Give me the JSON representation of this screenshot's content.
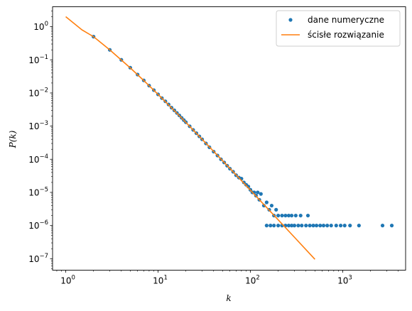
{
  "chart_data": {
    "type": "scatter",
    "x_scale": "log",
    "y_scale": "log",
    "xlim": [
      0.72,
      4800
    ],
    "ylim": [
      4.5e-08,
      4.0
    ],
    "xlabel": "k",
    "ylabel": "P(k)",
    "grid": false,
    "legend_position": "top-right",
    "x_ticks": [
      {
        "value": 1,
        "base": "10",
        "exp": "0"
      },
      {
        "value": 10,
        "base": "10",
        "exp": "1"
      },
      {
        "value": 100,
        "base": "10",
        "exp": "2"
      },
      {
        "value": 1000,
        "base": "10",
        "exp": "3"
      }
    ],
    "y_ticks": [
      {
        "value": 1,
        "base": "10",
        "exp": "0"
      },
      {
        "value": 0.1,
        "base": "10",
        "exp": "−1"
      },
      {
        "value": 0.01,
        "base": "10",
        "exp": "−2"
      },
      {
        "value": 0.001,
        "base": "10",
        "exp": "−3"
      },
      {
        "value": 0.0001,
        "base": "10",
        "exp": "−4"
      },
      {
        "value": 1e-05,
        "base": "10",
        "exp": "−5"
      },
      {
        "value": 1e-06,
        "base": "10",
        "exp": "−6"
      },
      {
        "value": 1e-07,
        "base": "10",
        "exp": "−7"
      }
    ],
    "series": [
      {
        "name": "dane numeryczne",
        "kind": "scatter",
        "color": "#1f77b4",
        "points": [
          [
            2,
            0.5
          ],
          [
            3,
            0.2
          ],
          [
            4,
            0.1
          ],
          [
            5,
            0.058
          ],
          [
            6,
            0.036
          ],
          [
            7,
            0.024
          ],
          [
            8,
            0.0167
          ],
          [
            9,
            0.0122
          ],
          [
            10,
            0.0091
          ],
          [
            11,
            0.007
          ],
          [
            12,
            0.0056
          ],
          [
            13,
            0.0045
          ],
          [
            14,
            0.0036
          ],
          [
            15,
            0.003
          ],
          [
            16,
            0.0025
          ],
          [
            17,
            0.0021
          ],
          [
            18,
            0.00178
          ],
          [
            19,
            0.00152
          ],
          [
            20,
            0.00131
          ],
          [
            22,
            0.00099
          ],
          [
            24,
            0.00077
          ],
          [
            26,
            0.00061
          ],
          [
            28,
            0.00049
          ],
          [
            30,
            0.0004
          ],
          [
            33,
            0.0003
          ],
          [
            36,
            0.00023
          ],
          [
            40,
            0.00017
          ],
          [
            44,
            0.00013
          ],
          [
            48,
            0.0001
          ],
          [
            52,
            8e-05
          ],
          [
            56,
            6.4e-05
          ],
          [
            60,
            5.2e-05
          ],
          [
            65,
            4.2e-05
          ],
          [
            70,
            3.3e-05
          ],
          [
            75,
            2.8e-05
          ],
          [
            80,
            2.6e-05
          ],
          [
            85,
            2e-05
          ],
          [
            90,
            1.7e-05
          ],
          [
            95,
            1.5e-05
          ],
          [
            100,
            1.2e-05
          ],
          [
            105,
            1e-05
          ],
          [
            110,
            1e-05
          ],
          [
            115,
            8e-06
          ],
          [
            120,
            1e-05
          ],
          [
            125,
            6e-06
          ],
          [
            130,
            9e-06
          ],
          [
            140,
            4e-06
          ],
          [
            150,
            5e-06
          ],
          [
            160,
            3e-06
          ],
          [
            170,
            4e-06
          ],
          [
            180,
            2e-06
          ],
          [
            190,
            3e-06
          ],
          [
            200,
            2e-06
          ],
          [
            220,
            2e-06
          ],
          [
            240,
            2e-06
          ],
          [
            260,
            2e-06
          ],
          [
            280,
            2e-06
          ],
          [
            310,
            2e-06
          ],
          [
            350,
            2e-06
          ],
          [
            420,
            2e-06
          ],
          [
            150,
            1e-06
          ],
          [
            165,
            1e-06
          ],
          [
            180,
            1e-06
          ],
          [
            200,
            1e-06
          ],
          [
            220,
            1e-06
          ],
          [
            240,
            1e-06
          ],
          [
            260,
            1e-06
          ],
          [
            280,
            1e-06
          ],
          [
            300,
            1e-06
          ],
          [
            330,
            1e-06
          ],
          [
            360,
            1e-06
          ],
          [
            400,
            1e-06
          ],
          [
            440,
            1e-06
          ],
          [
            480,
            1e-06
          ],
          [
            520,
            1e-06
          ],
          [
            570,
            1e-06
          ],
          [
            620,
            1e-06
          ],
          [
            680,
            1e-06
          ],
          [
            750,
            1e-06
          ],
          [
            850,
            1e-06
          ],
          [
            950,
            1e-06
          ],
          [
            1050,
            1e-06
          ],
          [
            1200,
            1e-06
          ],
          [
            1500,
            1e-06
          ],
          [
            2700,
            1e-06
          ],
          [
            3400,
            1e-06
          ]
        ]
      },
      {
        "name": "ścisłe rozwiązanie",
        "kind": "line",
        "color": "#ff7f0e",
        "points": [
          [
            1,
            2.0
          ],
          [
            1.5,
            0.8
          ],
          [
            2,
            0.5
          ],
          [
            3,
            0.2
          ],
          [
            5,
            0.0571
          ],
          [
            7,
            0.0238
          ],
          [
            10,
            0.00909
          ],
          [
            15,
            0.00294
          ],
          [
            20,
            0.0013
          ],
          [
            30,
            0.0004
          ],
          [
            50,
            9.05e-05
          ],
          [
            70,
            3.38e-05
          ],
          [
            100,
            1.17e-05
          ],
          [
            150,
            3.51e-06
          ],
          [
            200,
            1.49e-06
          ],
          [
            300,
            4.43e-07
          ],
          [
            500,
            9.59e-08
          ]
        ]
      }
    ]
  }
}
